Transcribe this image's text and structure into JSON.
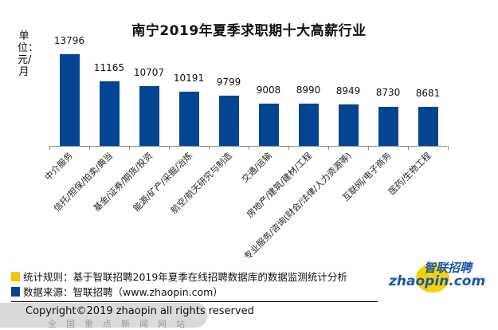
{
  "chart_data": {
    "type": "bar",
    "title": "南宁2019年夏季求职期十大高薪行业",
    "ylabel": "单位：元/月",
    "xlabel": "",
    "categories": [
      "中介服务",
      "信托/担保/拍卖/典当",
      "基金/证券/期货/投资",
      "能源/矿产/采掘/冶炼",
      "航空/航天研究与制造",
      "交通/运输",
      "房地产/建筑/建材/工程",
      "专业服务/咨询(财会/法律/人力资源等)",
      "互联网/电子商务",
      "医药/生物工程"
    ],
    "values": [
      13796,
      11165,
      10707,
      10191,
      9799,
      9008,
      8990,
      8949,
      8730,
      8681
    ],
    "labels": [
      "13796",
      "11165",
      "10707",
      "10191",
      "9799",
      "9008",
      "8990",
      "8949",
      "8730",
      "8681"
    ],
    "ylim": [
      4900,
      14000
    ],
    "grid": false,
    "legend_position": "none",
    "bar_color": "#034592"
  },
  "notes": {
    "rule": "统计规则：基于智联招聘2019年夏季在线招聘数据库的数据监测统计分析",
    "source": "数据来源：智联招聘（www.zhaopin.com）",
    "rule_color": "#f7c600",
    "source_color": "#034592"
  },
  "footer": {
    "copyright": "Copyright©2019 zhaopin all rights reserved",
    "watermark": "全国重点新闻网站"
  },
  "logo": {
    "cn": "智联招聘",
    "en": "zhaopin.com"
  }
}
